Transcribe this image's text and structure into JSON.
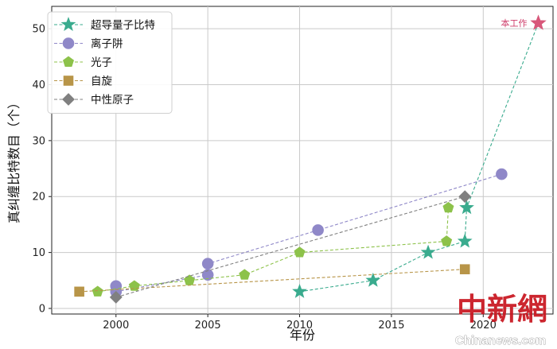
{
  "chart_data": {
    "type": "line",
    "xlabel": "年份",
    "ylabel": "真纠缠比特数目（个）",
    "xlim": [
      1996.5,
      2023.8
    ],
    "ylim": [
      -1,
      54
    ],
    "xticks": [
      2000,
      2005,
      2010,
      2015,
      2020
    ],
    "yticks": [
      0,
      10,
      20,
      30,
      40,
      50
    ],
    "grid": true,
    "legend_position": "top-left",
    "series": [
      {
        "name": "超导量子比特",
        "marker": "star",
        "color": "#3aab8e",
        "points": [
          [
            2010,
            3
          ],
          [
            2014,
            5
          ],
          [
            2017,
            10
          ],
          [
            2019,
            12
          ],
          [
            2019.1,
            18
          ],
          [
            2023,
            51
          ]
        ]
      },
      {
        "name": "离子阱",
        "marker": "circle",
        "color": "#8f88c8",
        "points": [
          [
            2000,
            4
          ],
          [
            2000,
            3
          ],
          [
            2005,
            6
          ],
          [
            2005,
            8
          ],
          [
            2011,
            14
          ],
          [
            2021,
            24
          ]
        ]
      },
      {
        "name": "光子",
        "marker": "pentagon",
        "color": "#8dc24a",
        "points": [
          [
            1999,
            3
          ],
          [
            2001,
            4
          ],
          [
            2004,
            5
          ],
          [
            2007,
            6
          ],
          [
            2010,
            10
          ],
          [
            2018,
            12
          ],
          [
            2018.1,
            18
          ]
        ]
      },
      {
        "name": "自旋",
        "marker": "square",
        "color": "#b89548",
        "points": [
          [
            1998,
            3
          ],
          [
            2019,
            7
          ]
        ]
      },
      {
        "name": "中性原子",
        "marker": "diamond",
        "color": "#808080",
        "points": [
          [
            2000,
            2
          ],
          [
            2019,
            20
          ]
        ]
      }
    ],
    "annotations": [
      {
        "text": "本工作",
        "x": 2023,
        "y": 51,
        "color": "#cf3d6a",
        "marker_color": "#d8577a"
      }
    ]
  },
  "watermark": {
    "brand_text": "中新網",
    "site_text": "Chinanews.com"
  }
}
